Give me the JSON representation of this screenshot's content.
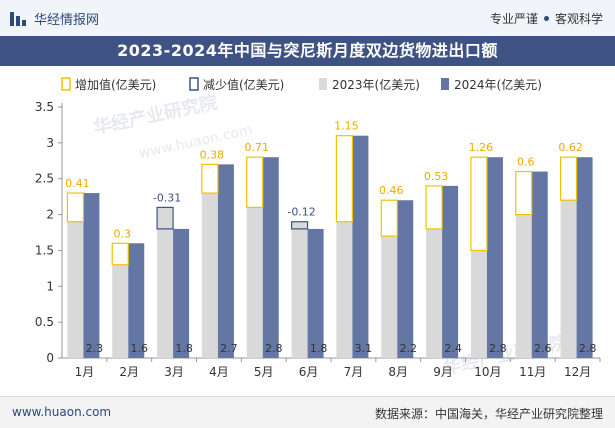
{
  "header": {
    "brand": "华经情报网",
    "slogan_left": "专业严谨",
    "slogan_right": "客观科学",
    "title": "2023-2024年中国与突尼斯月度双边货物进出口额"
  },
  "footer": {
    "site": "www.huaon.com",
    "source": "数据来源：中国海关，华经产业研究院整理"
  },
  "watermarks": [
    "华经产业研究院",
    "www.huaon.com"
  ],
  "chart_data": {
    "type": "bar",
    "categories": [
      "1月",
      "2月",
      "3月",
      "4月",
      "5月",
      "6月",
      "7月",
      "8月",
      "9月",
      "10月",
      "11月",
      "12月"
    ],
    "series": [
      {
        "name": "2023年(亿美元)",
        "values": [
          1.9,
          1.3,
          2.1,
          2.3,
          2.1,
          1.9,
          1.9,
          1.7,
          1.8,
          1.5,
          2.0,
          2.2
        ]
      },
      {
        "name": "2024年(亿美元)",
        "values": [
          2.3,
          1.6,
          1.8,
          2.7,
          2.8,
          1.8,
          3.1,
          2.2,
          2.4,
          2.8,
          2.6,
          2.8
        ]
      }
    ],
    "change": [
      0.41,
      0.3,
      -0.31,
      0.38,
      0.71,
      -0.12,
      1.15,
      0.46,
      0.53,
      1.26,
      0.6,
      0.62
    ],
    "change_labels": [
      "0.41",
      "0.3",
      "-0.31",
      "0.38",
      "0.71",
      "-0.12",
      "1.15",
      "0.46",
      "0.53",
      "1.26",
      "0.6",
      "0.62"
    ],
    "value_labels_2024": [
      "2.3",
      "1.6",
      "1.8",
      "2.7",
      "2.8",
      "1.8",
      "3.1",
      "2.2",
      "2.4",
      "2.8",
      "2.6",
      "2.8"
    ],
    "legend": [
      "增加值(亿美元)",
      "减少值(亿美元)",
      "2023年(亿美元)",
      "2024年(亿美元)"
    ],
    "legend_position": "top",
    "ylim": [
      0,
      3.5
    ],
    "yticks": [
      "0",
      "0.5",
      "1",
      "1.5",
      "2",
      "2.5",
      "3",
      "3.5"
    ],
    "grid": false,
    "colors": {
      "s2023": "#d9d9d9",
      "s2024": "#6476a3",
      "increase": "#f2c200",
      "decrease": "#3e5284",
      "increase_label": "#f2a900",
      "decrease_label": "#3e5284",
      "value_label": "#333333",
      "axis_text": "#333333"
    }
  }
}
